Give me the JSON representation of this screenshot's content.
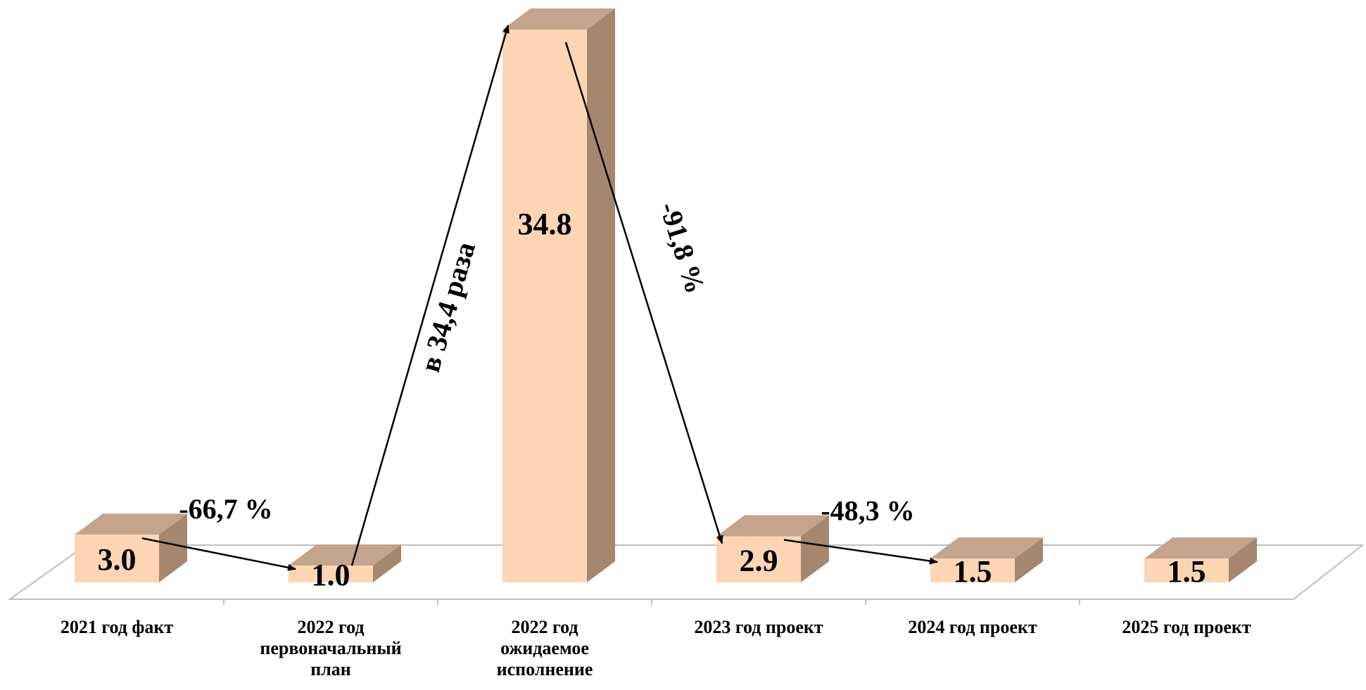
{
  "chart_data": {
    "type": "bar",
    "style": "3d",
    "categories": [
      [
        "2021 год факт"
      ],
      [
        "2022 год",
        "первоначальный",
        "план"
      ],
      [
        "2022 год",
        "ожидаемое",
        "исполнение"
      ],
      [
        "2023 год проект"
      ],
      [
        "2024 год проект"
      ],
      [
        "2025 год проект"
      ]
    ],
    "values": [
      3.0,
      1.0,
      34.8,
      2.9,
      1.5,
      1.5
    ],
    "value_labels": [
      "3.0",
      "1.0",
      "34.8",
      "2.9",
      "1.5",
      "1.5"
    ],
    "annotations": [
      {
        "text": "-66,7 %",
        "from": 0,
        "to": 1
      },
      {
        "text": "в 34,4 раза",
        "from": 1,
        "to": 2
      },
      {
        "text": "-91,8 %",
        "from": 2,
        "to": 3
      },
      {
        "text": "-48,3 %",
        "from": 3,
        "to": 4
      }
    ],
    "title": "",
    "xlabel": "",
    "ylabel": "",
    "ylim": [
      0,
      34.8
    ],
    "grid": false,
    "legend": "none",
    "colors": {
      "front": "#FCD5B5",
      "top": "#C4A48C",
      "side": "#A5876F",
      "floor_line": "#BFBFBF",
      "arrow": "#000000"
    }
  }
}
